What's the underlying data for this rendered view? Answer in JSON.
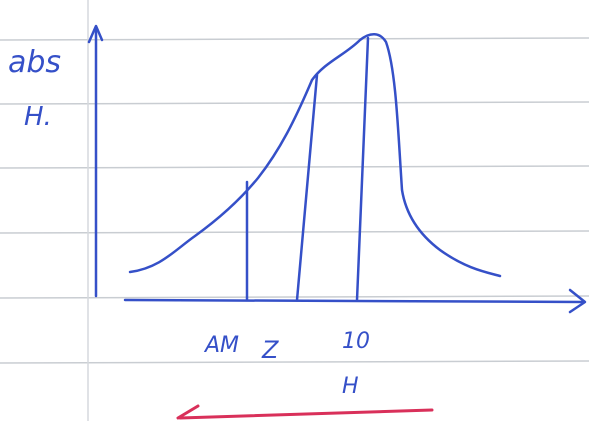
{
  "y_axis_label": {
    "line1": "abs",
    "line2": "H."
  },
  "x_labels": [
    "AM",
    "Z",
    "10"
  ],
  "x_axis_label": "H"
}
